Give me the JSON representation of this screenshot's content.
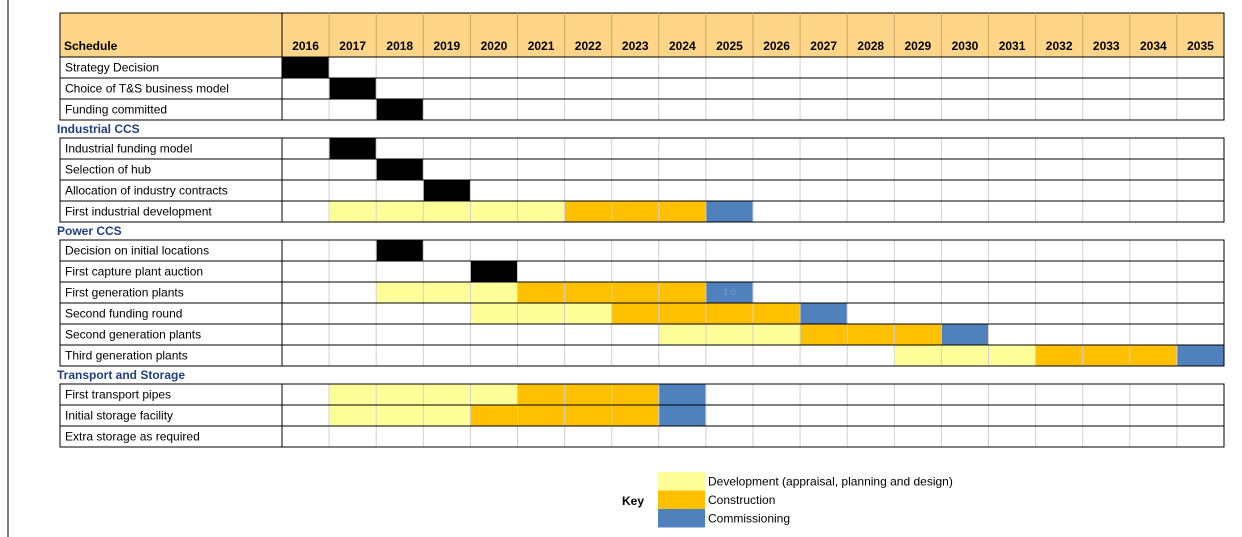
{
  "table": {
    "header": "Schedule",
    "years": [
      2016,
      2017,
      2018,
      2019,
      2020,
      2021,
      2022,
      2023,
      2024,
      2025,
      2026,
      2027,
      2028,
      2029,
      2030,
      2031,
      2032,
      2033,
      2034,
      2035
    ],
    "groups": [
      {
        "rows": [
          {
            "label": "Strategy Decision",
            "bars": [
              {
                "from": 2016,
                "to": 2016,
                "color": "#000000"
              }
            ]
          },
          {
            "label": "Choice of T&S business model",
            "bars": [
              {
                "from": 2017,
                "to": 2017,
                "color": "#000000"
              }
            ]
          },
          {
            "label": "Funding committed",
            "bars": [
              {
                "from": 2018,
                "to": 2018,
                "color": "#000000"
              }
            ]
          }
        ]
      },
      {
        "title": "Industrial CCS",
        "rows": [
          {
            "label": "Industrial funding model",
            "bars": [
              {
                "from": 2017,
                "to": 2017,
                "color": "#000000"
              }
            ]
          },
          {
            "label": "Selection of hub",
            "bars": [
              {
                "from": 2018,
                "to": 2018,
                "color": "#000000"
              }
            ]
          },
          {
            "label": "Allocation of industry contracts",
            "bars": [
              {
                "from": 2019,
                "to": 2019,
                "color": "#000000"
              }
            ]
          },
          {
            "label": "First industrial development",
            "bars": [
              {
                "from": 2017,
                "to": 2021,
                "color": "#ffff99"
              },
              {
                "from": 2022,
                "to": 2024,
                "color": "#ffc000"
              },
              {
                "from": 2025,
                "to": 2025,
                "color": "#4f81bd"
              }
            ]
          }
        ]
      },
      {
        "title": "Power CCS",
        "rows": [
          {
            "label": "Decision on initial locations",
            "bars": [
              {
                "from": 2018,
                "to": 2018,
                "color": "#000000"
              }
            ]
          },
          {
            "label": "First capture plant auction",
            "bars": [
              {
                "from": 2020,
                "to": 2020,
                "color": "#000000"
              }
            ]
          },
          {
            "label": "First generation plants",
            "bars": [
              {
                "from": 2018,
                "to": 2020,
                "color": "#ffff99"
              },
              {
                "from": 2021,
                "to": 2024,
                "color": "#ffc000"
              },
              {
                "from": 2025,
                "to": 2025,
                "color": "#4f81bd",
                "label": "1.0"
              }
            ]
          },
          {
            "label": "Second funding round",
            "bars": [
              {
                "from": 2020,
                "to": 2022,
                "color": "#ffff99"
              },
              {
                "from": 2023,
                "to": 2026,
                "color": "#ffc000"
              },
              {
                "from": 2027,
                "to": 2027,
                "color": "#4f81bd"
              }
            ]
          },
          {
            "label": "Second generation plants",
            "bars": [
              {
                "from": 2024,
                "to": 2026,
                "color": "#ffff99"
              },
              {
                "from": 2027,
                "to": 2029,
                "color": "#ffc000"
              },
              {
                "from": 2030,
                "to": 2030,
                "color": "#4f81bd"
              }
            ]
          },
          {
            "label": "Third generation plants",
            "bars": [
              {
                "from": 2029,
                "to": 2031,
                "color": "#ffff99"
              },
              {
                "from": 2032,
                "to": 2034,
                "color": "#ffc000"
              },
              {
                "from": 2035,
                "to": 2035,
                "color": "#4f81bd"
              }
            ]
          }
        ]
      },
      {
        "title": "Transport and Storage",
        "rows": [
          {
            "label": "First transport pipes",
            "bars": [
              {
                "from": 2017,
                "to": 2020,
                "color": "#ffff99"
              },
              {
                "from": 2021,
                "to": 2023,
                "color": "#ffc000"
              },
              {
                "from": 2024,
                "to": 2024,
                "color": "#4f81bd"
              }
            ]
          },
          {
            "label": "Initial storage facility",
            "bars": [
              {
                "from": 2017,
                "to": 2019,
                "color": "#ffff99"
              },
              {
                "from": 2020,
                "to": 2023,
                "color": "#ffc000"
              },
              {
                "from": 2024,
                "to": 2024,
                "color": "#4f81bd"
              }
            ]
          },
          {
            "label": "Extra storage as required",
            "bars": []
          }
        ]
      }
    ]
  },
  "key": {
    "title": "Key",
    "items": [
      {
        "label": "Development (appraisal, planning and design)",
        "color": "#ffff99"
      },
      {
        "label": "Construction",
        "color": "#ffc000"
      },
      {
        "label": "Commissioning",
        "color": "#4f81bd"
      }
    ]
  }
}
